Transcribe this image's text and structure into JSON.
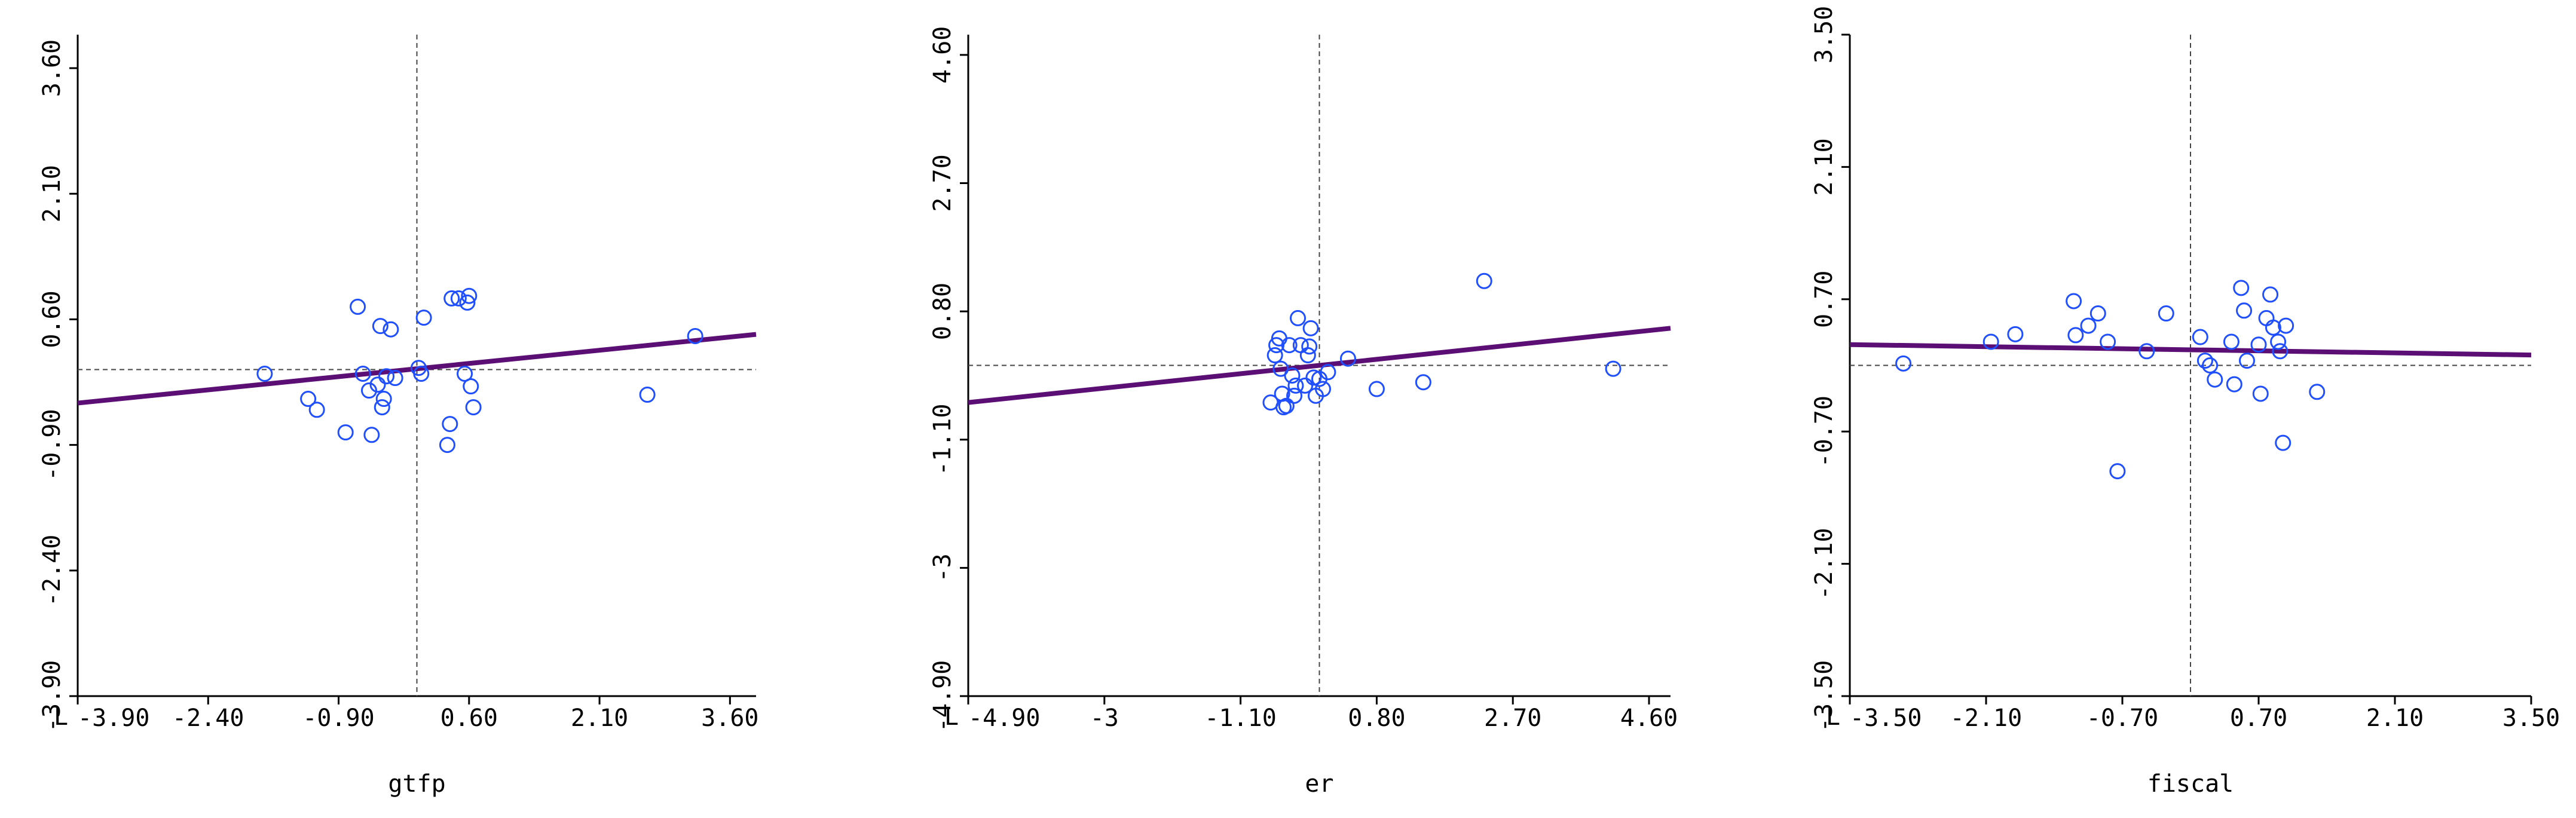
{
  "chart_data": [
    {
      "type": "scatter",
      "xlabel": "gtfp",
      "ylabel": "",
      "xlim": [
        -3.9,
        3.9
      ],
      "ylim": [
        -3.9,
        4.0
      ],
      "xticks": [
        "-3.90",
        "-2.40",
        "-0.90",
        "0.60",
        "2.10",
        "3.60"
      ],
      "xtick_values": [
        -3.9,
        -2.4,
        -0.9,
        0.6,
        2.1,
        3.6
      ],
      "yticks": [
        "-3.90",
        "-2.40",
        "-0.90",
        "0.60",
        "2.10",
        "3.60"
      ],
      "ytick_values": [
        -3.9,
        -2.4,
        -0.9,
        0.6,
        2.1,
        3.6
      ],
      "axis_prefix": "L",
      "ref_x": 0.0,
      "ref_y": 0.0,
      "fit_line": {
        "x": [
          -3.9,
          3.9
        ],
        "y": [
          -0.4,
          0.42
        ]
      },
      "points": [
        {
          "x": -1.75,
          "y": -0.05
        },
        {
          "x": -1.25,
          "y": -0.35
        },
        {
          "x": -1.15,
          "y": -0.48
        },
        {
          "x": -0.82,
          "y": -0.75
        },
        {
          "x": -0.68,
          "y": 0.75
        },
        {
          "x": -0.62,
          "y": -0.05
        },
        {
          "x": -0.55,
          "y": -0.25
        },
        {
          "x": -0.52,
          "y": -0.78
        },
        {
          "x": -0.45,
          "y": -0.18
        },
        {
          "x": -0.42,
          "y": 0.52
        },
        {
          "x": -0.4,
          "y": -0.45
        },
        {
          "x": -0.38,
          "y": -0.35
        },
        {
          "x": -0.35,
          "y": -0.08
        },
        {
          "x": -0.3,
          "y": 0.48
        },
        {
          "x": -0.25,
          "y": -0.1
        },
        {
          "x": 0.02,
          "y": 0.02
        },
        {
          "x": 0.05,
          "y": -0.05
        },
        {
          "x": 0.08,
          "y": 0.62
        },
        {
          "x": 0.35,
          "y": -0.9
        },
        {
          "x": 0.38,
          "y": -0.65
        },
        {
          "x": 0.4,
          "y": 0.85
        },
        {
          "x": 0.48,
          "y": 0.85
        },
        {
          "x": 0.55,
          "y": -0.05
        },
        {
          "x": 0.58,
          "y": 0.8
        },
        {
          "x": 0.6,
          "y": 0.88
        },
        {
          "x": 0.62,
          "y": -0.2
        },
        {
          "x": 0.65,
          "y": -0.45
        },
        {
          "x": 2.65,
          "y": -0.3
        },
        {
          "x": 3.2,
          "y": 0.4
        }
      ]
    },
    {
      "type": "scatter",
      "xlabel": "er",
      "ylabel": "",
      "xlim": [
        -4.9,
        4.9
      ],
      "ylim": [
        -4.9,
        4.9
      ],
      "xticks": [
        "-4.90",
        "-3",
        "-1.10",
        "0.80",
        "2.70",
        "4.60"
      ],
      "xtick_values": [
        -4.9,
        -3.0,
        -1.1,
        0.8,
        2.7,
        4.6
      ],
      "yticks": [
        "-4.90",
        "-3",
        "-1.10",
        "0.80",
        "2.70",
        "4.60"
      ],
      "ytick_values": [
        -4.9,
        -3.0,
        -1.1,
        0.8,
        2.7,
        4.6
      ],
      "axis_prefix": "L",
      "ref_x": 0.0,
      "ref_y": 0.0,
      "fit_line": {
        "x": [
          -4.9,
          4.9
        ],
        "y": [
          -0.55,
          0.55
        ]
      },
      "points": [
        {
          "x": -0.68,
          "y": -0.55
        },
        {
          "x": -0.62,
          "y": 0.15
        },
        {
          "x": -0.6,
          "y": 0.3
        },
        {
          "x": -0.56,
          "y": 0.4
        },
        {
          "x": -0.54,
          "y": -0.05
        },
        {
          "x": -0.52,
          "y": -0.42
        },
        {
          "x": -0.5,
          "y": -0.62
        },
        {
          "x": -0.46,
          "y": -0.6
        },
        {
          "x": -0.42,
          "y": 0.3
        },
        {
          "x": -0.38,
          "y": -0.15
        },
        {
          "x": -0.35,
          "y": -0.45
        },
        {
          "x": -0.33,
          "y": -0.3
        },
        {
          "x": -0.3,
          "y": 0.7
        },
        {
          "x": -0.26,
          "y": 0.3
        },
        {
          "x": -0.2,
          "y": -0.3
        },
        {
          "x": -0.16,
          "y": 0.15
        },
        {
          "x": -0.14,
          "y": 0.28
        },
        {
          "x": -0.12,
          "y": 0.55
        },
        {
          "x": -0.08,
          "y": -0.18
        },
        {
          "x": -0.05,
          "y": -0.45
        },
        {
          "x": 0.0,
          "y": -0.2
        },
        {
          "x": 0.05,
          "y": -0.35
        },
        {
          "x": 0.12,
          "y": -0.1
        },
        {
          "x": 0.4,
          "y": 0.1
        },
        {
          "x": 0.8,
          "y": -0.35
        },
        {
          "x": 1.45,
          "y": -0.25
        },
        {
          "x": 2.3,
          "y": 1.25
        },
        {
          "x": 4.1,
          "y": -0.05
        }
      ]
    },
    {
      "type": "scatter",
      "xlabel": "fiscal",
      "ylabel": "",
      "xlim": [
        -3.5,
        3.5
      ],
      "ylim": [
        -3.5,
        3.5
      ],
      "xticks": [
        "-3.50",
        "-2.10",
        "-0.70",
        "0.70",
        "2.10",
        "3.50"
      ],
      "xtick_values": [
        -3.5,
        -2.1,
        -0.7,
        0.7,
        2.1,
        3.5
      ],
      "yticks": [
        "-3.50",
        "-2.10",
        "-0.70",
        "0.70",
        "2.10",
        "3.50"
      ],
      "ytick_values": [
        -3.5,
        -2.1,
        -0.7,
        0.7,
        2.1,
        3.5
      ],
      "axis_prefix": "L",
      "ref_x": 0.0,
      "ref_y": 0.0,
      "fit_line": {
        "x": [
          -3.5,
          3.5
        ],
        "y": [
          0.22,
          0.11
        ]
      },
      "points": [
        {
          "x": -2.95,
          "y": 0.02
        },
        {
          "x": -2.05,
          "y": 0.25
        },
        {
          "x": -1.8,
          "y": 0.33
        },
        {
          "x": -1.2,
          "y": 0.68
        },
        {
          "x": -1.18,
          "y": 0.32
        },
        {
          "x": -1.05,
          "y": 0.42
        },
        {
          "x": -0.95,
          "y": 0.55
        },
        {
          "x": -0.85,
          "y": 0.25
        },
        {
          "x": -0.75,
          "y": -1.12
        },
        {
          "x": -0.45,
          "y": 0.15
        },
        {
          "x": -0.25,
          "y": 0.55
        },
        {
          "x": 0.1,
          "y": 0.3
        },
        {
          "x": 0.15,
          "y": 0.05
        },
        {
          "x": 0.2,
          "y": 0.0
        },
        {
          "x": 0.25,
          "y": -0.15
        },
        {
          "x": 0.42,
          "y": 0.25
        },
        {
          "x": 0.45,
          "y": -0.2
        },
        {
          "x": 0.52,
          "y": 0.82
        },
        {
          "x": 0.55,
          "y": 0.58
        },
        {
          "x": 0.58,
          "y": 0.05
        },
        {
          "x": 0.7,
          "y": 0.22
        },
        {
          "x": 0.72,
          "y": -0.3
        },
        {
          "x": 0.78,
          "y": 0.5
        },
        {
          "x": 0.82,
          "y": 0.75
        },
        {
          "x": 0.85,
          "y": 0.4
        },
        {
          "x": 0.9,
          "y": 0.25
        },
        {
          "x": 0.92,
          "y": 0.15
        },
        {
          "x": 0.95,
          "y": -0.82
        },
        {
          "x": 0.98,
          "y": 0.42
        },
        {
          "x": 1.3,
          "y": -0.28
        }
      ]
    }
  ],
  "colors": {
    "marker": "#1f4fff",
    "fit_line": "#5b0f74",
    "reference_line": "#444444",
    "axis": "#000000"
  }
}
